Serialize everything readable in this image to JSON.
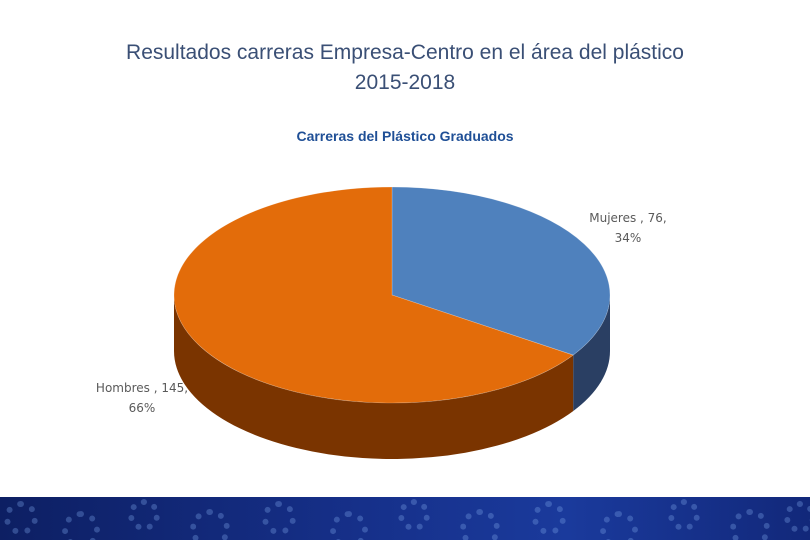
{
  "slide": {
    "title_line1": "Resultados carreras Empresa-Centro en el área del plástico",
    "title_line2": "2015-2018"
  },
  "chart_data": {
    "type": "pie",
    "title": "Carreras del Plástico Graduados",
    "categories": [
      "Mujeres",
      "Hombres"
    ],
    "values": [
      76,
      145
    ],
    "percents": [
      34,
      66
    ],
    "colors": [
      "#4f81bd",
      "#e36c0a"
    ],
    "side_colors": [
      "#2a3f63",
      "#7a3400"
    ],
    "three_d": true,
    "labels": [
      {
        "line1": "Mujeres , 76,",
        "line2": "34%"
      },
      {
        "line1": "Hombres , 145,",
        "line2": "66%"
      }
    ]
  },
  "footer": {
    "decoration": "gear-pattern-icon",
    "colors": [
      "#0d1f63",
      "#1a3a9c"
    ]
  }
}
